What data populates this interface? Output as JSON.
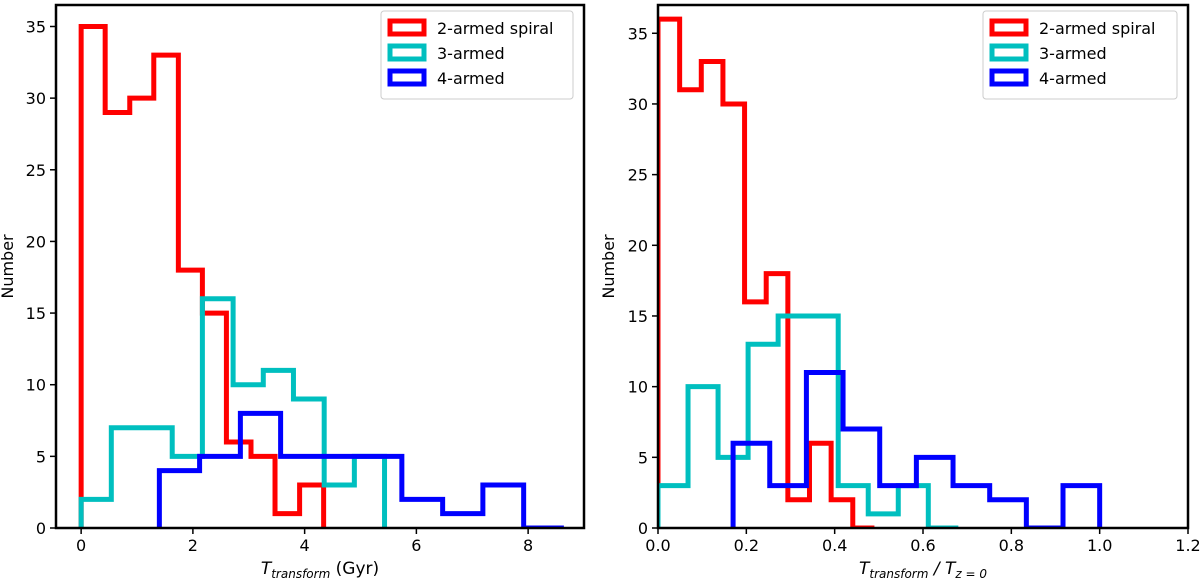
{
  "chart_data": [
    {
      "type": "histogram",
      "xlabel_main": "T",
      "xlabel_sub": "transform",
      "xlabel_tail": " (Gyr)",
      "ylabel": "Number",
      "xlim": [
        -0.45,
        9.0
      ],
      "ylim": [
        0,
        36.5
      ],
      "xticks": [
        0,
        2,
        4,
        6,
        8
      ],
      "xtick_labels": [
        "0",
        "2",
        "4",
        "6",
        "8"
      ],
      "yticks": [
        0,
        5,
        10,
        15,
        20,
        25,
        30,
        35
      ],
      "ytick_labels": [
        "0",
        "5",
        "10",
        "15",
        "20",
        "25",
        "30",
        "35"
      ],
      "legend_position": "top-right",
      "series": [
        {
          "name": "2-armed spiral",
          "color": "#ff0000",
          "bin_edges": [
            0,
            0.43,
            0.87,
            1.3,
            1.74,
            2.17,
            2.6,
            3.04,
            3.47,
            3.91,
            4.34
          ],
          "counts": [
            35,
            29,
            30,
            33,
            18,
            15,
            6,
            5,
            1,
            3
          ]
        },
        {
          "name": "3-armed",
          "color": "#00bfbf",
          "bin_edges": [
            0,
            0.54,
            1.09,
            1.63,
            2.17,
            2.72,
            3.26,
            3.8,
            4.35,
            4.89,
            5.43
          ],
          "counts": [
            2,
            7,
            7,
            5,
            16,
            10,
            11,
            9,
            3,
            5
          ]
        },
        {
          "name": "4-armed",
          "color": "#0000ff",
          "bin_edges": [
            1.4,
            2.12,
            2.85,
            3.57,
            4.29,
            5.02,
            5.74,
            6.47,
            7.19,
            7.92,
            8.64
          ],
          "counts": [
            4,
            5,
            8,
            5,
            5,
            5,
            2,
            1,
            3,
            0
          ]
        }
      ]
    },
    {
      "type": "histogram",
      "xlabel_main": "T",
      "xlabel_sub": "transform",
      "xlabel_mid": " / T",
      "xlabel_sub2": "z = 0",
      "ylabel": "Number",
      "xlim": [
        0.0,
        1.2
      ],
      "ylim": [
        0,
        37
      ],
      "xticks": [
        0.0,
        0.2,
        0.4,
        0.6,
        0.8,
        1.0,
        1.2
      ],
      "xtick_labels": [
        "0.0",
        "0.2",
        "0.4",
        "0.6",
        "0.8",
        "1.0",
        "1.2"
      ],
      "yticks": [
        0,
        5,
        10,
        15,
        20,
        25,
        30,
        35
      ],
      "ytick_labels": [
        "0",
        "5",
        "10",
        "15",
        "20",
        "25",
        "30",
        "35"
      ],
      "legend_position": "top-right",
      "series": [
        {
          "name": "2-armed spiral",
          "color": "#ff0000",
          "bin_edges": [
            0.0,
            0.049,
            0.098,
            0.147,
            0.196,
            0.245,
            0.294,
            0.343,
            0.392,
            0.441,
            0.49
          ],
          "counts": [
            36,
            31,
            33,
            30,
            16,
            18,
            2,
            6,
            2,
            0
          ]
        },
        {
          "name": "3-armed",
          "color": "#00bfbf",
          "bin_edges": [
            0.0,
            0.068,
            0.136,
            0.204,
            0.272,
            0.34,
            0.408,
            0.476,
            0.544,
            0.612,
            0.68
          ],
          "counts": [
            3,
            10,
            5,
            13,
            15,
            15,
            3,
            1,
            3,
            0
          ]
        },
        {
          "name": "4-armed",
          "color": "#0000ff",
          "bin_edges": [
            0.17,
            0.253,
            0.336,
            0.419,
            0.502,
            0.585,
            0.668,
            0.751,
            0.834,
            0.917,
            1.0
          ],
          "counts": [
            6,
            3,
            11,
            7,
            3,
            5,
            3,
            2,
            0,
            3
          ]
        }
      ]
    }
  ]
}
